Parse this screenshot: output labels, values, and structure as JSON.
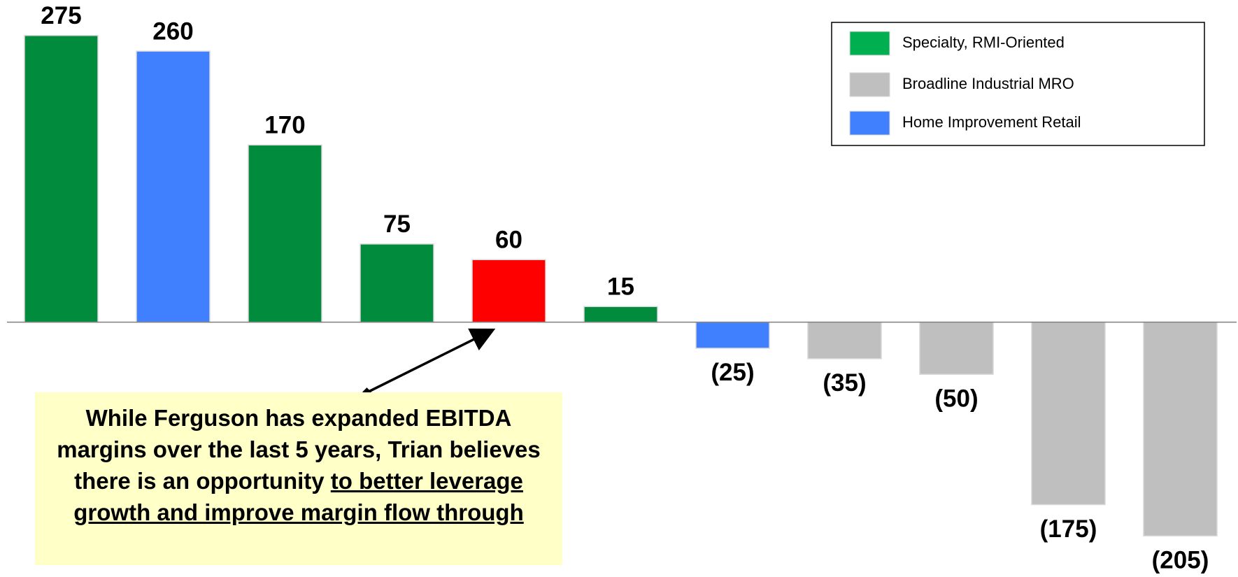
{
  "chart_data": {
    "type": "bar",
    "values": [
      275,
      260,
      170,
      75,
      60,
      15,
      -25,
      -35,
      -50,
      -175,
      -205
    ],
    "value_labels": [
      "275",
      "260",
      "170",
      "75",
      "60",
      "15",
      "(25)",
      "(35)",
      "(50)",
      "(175)",
      "(205)"
    ],
    "colors": [
      "#008c3c",
      "#4080ff",
      "#008c3c",
      "#008c3c",
      "#ff0000",
      "#008c3c",
      "#4080ff",
      "#bfbfbf",
      "#bfbfbf",
      "#bfbfbf",
      "#bfbfbf"
    ],
    "ylim": [
      -240,
      290
    ],
    "legend": {
      "position": "top-right",
      "entries": [
        {
          "name": "Specialty, RMI-Oriented",
          "color": "#00b050"
        },
        {
          "name": "Broadline Industrial MRO",
          "color": "#bfbfbf"
        },
        {
          "name": "Home Improvement Retail",
          "color": "#4080ff"
        }
      ]
    },
    "annotation": {
      "text": "While Ferguson has expanded EBITDA margins over the last 5 years, Trian believes there is an opportunity",
      "emphasis": "to better leverage growth and improve margin flow through"
    }
  }
}
